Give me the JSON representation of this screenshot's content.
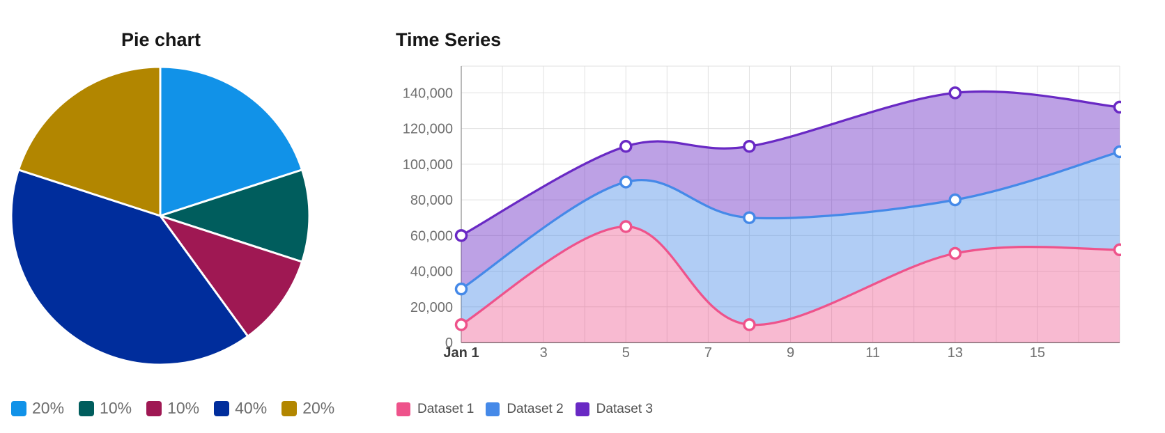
{
  "pie_panel": {
    "title": "Pie chart"
  },
  "timeseries_panel": {
    "title": "Time Series"
  },
  "colors": {
    "grid": "#e0e0e0",
    "y_axis": "#a2a2a2",
    "x_axis": "#8d8d8d",
    "tick_text": "#6f6f6f",
    "first_tick_text": "#3c3c3c",
    "title_text": "#161616",
    "pie_legend_text": "#6e6e6e",
    "ts_legend_text": "#525252",
    "marker_fill": "#ffffff"
  },
  "chart_data": [
    {
      "type": "pie",
      "title": "Pie chart",
      "slices": [
        {
          "label": "20%",
          "value": 20,
          "color": "#1192e8"
        },
        {
          "label": "10%",
          "value": 10,
          "color": "#005d5d"
        },
        {
          "label": "10%",
          "value": 10,
          "color": "#9f1853"
        },
        {
          "label": "40%",
          "value": 40,
          "color": "#002d9c"
        },
        {
          "label": "20%",
          "value": 20,
          "color": "#b28600"
        }
      ],
      "start_angle": "12 o'clock, clockwise",
      "slice_gap_color": "#ffffff",
      "legend_position": "bottom"
    },
    {
      "type": "area",
      "title": "Time Series",
      "x": [
        1,
        5,
        8,
        13,
        17
      ],
      "x_unit": "day of January",
      "series": [
        {
          "name": "Dataset 1",
          "values": [
            10000,
            65000,
            10000,
            50000,
            52000
          ],
          "color": "#ee538b",
          "fill": "rgba(238,83,139,0.40)"
        },
        {
          "name": "Dataset 2",
          "values": [
            30000,
            90000,
            70000,
            80000,
            107000
          ],
          "color": "#4589e8",
          "fill": "rgba(69,137,232,0.42)"
        },
        {
          "name": "Dataset 3",
          "values": [
            60000,
            110000,
            110000,
            140000,
            132000
          ],
          "color": "#6929c4",
          "fill": "rgba(105,41,196,0.44)"
        }
      ],
      "fill_style": "each series area fills down to the series below (Dataset 1 fills to zero); translucent bands",
      "curve": "smooth (catmull-rom / bezier)",
      "markers": "circles, white fill, colored stroke",
      "ylim": [
        0,
        155000
      ],
      "yticks": [
        0,
        20000,
        40000,
        60000,
        80000,
        100000,
        120000,
        140000
      ],
      "ytick_format": "thousands with comma",
      "xticks": [
        {
          "value": 1,
          "label": "Jan 1",
          "bold": true
        },
        {
          "value": 3,
          "label": "3"
        },
        {
          "value": 5,
          "label": "5"
        },
        {
          "value": 7,
          "label": "7"
        },
        {
          "value": 9,
          "label": "9"
        },
        {
          "value": 11,
          "label": "11"
        },
        {
          "value": 13,
          "label": "13"
        },
        {
          "value": 15,
          "label": "15"
        }
      ],
      "grid": true,
      "legend_position": "bottom"
    }
  ]
}
